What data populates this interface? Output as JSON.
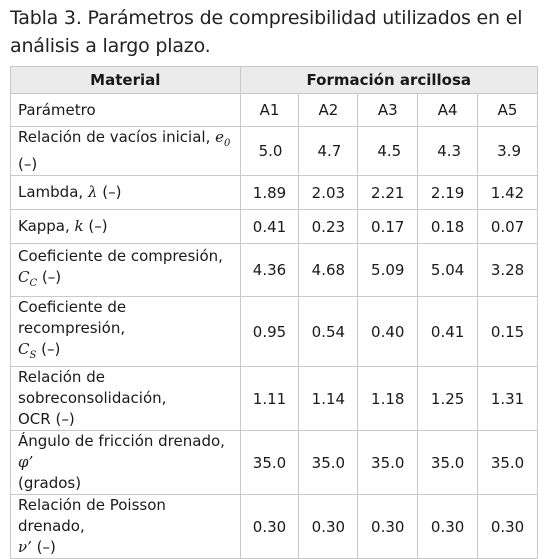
{
  "caption": "Tabla 3. Parámetros de compresibilidad utilizados en el análisis a largo plazo.",
  "header": {
    "material_label": "Material",
    "formation_label": "Formación arcillosa"
  },
  "subheader": {
    "param_label": "Parámetro",
    "columns": [
      "A1",
      "A2",
      "A3",
      "A4",
      "A5"
    ]
  },
  "rows": [
    {
      "label": "Relación de vacíos inicial, ",
      "sym": "e",
      "sub": "0",
      "tail": " (–)",
      "values": [
        "5.0",
        "4.7",
        "4.5",
        "4.3",
        "3.9"
      ]
    },
    {
      "label": "Lambda, ",
      "sym": "λ",
      "sub": "",
      "tail": " (–)",
      "values": [
        "1.89",
        "2.03",
        "2.21",
        "2.19",
        "1.42"
      ]
    },
    {
      "label": "Kappa, ",
      "sym": "k",
      "sub": "",
      "tail": " (–)",
      "values": [
        "0.41",
        "0.23",
        "0.17",
        "0.18",
        "0.07"
      ]
    },
    {
      "label": "Coeficiente de compresión,",
      "sym": "C",
      "sub": "C",
      "tail": " (–)",
      "values": [
        "4.36",
        "4.68",
        "5.09",
        "5.04",
        "3.28"
      ]
    },
    {
      "label": "Coeficiente de recompresión,",
      "sym": "C",
      "sub": "S",
      "tail": " (–)",
      "values": [
        "0.95",
        "0.54",
        "0.40",
        "0.41",
        "0.15"
      ]
    },
    {
      "label": "Relación de sobreconsolidación,",
      "sym": "",
      "sub": "",
      "tail": "OCR (–)",
      "values": [
        "1.11",
        "1.14",
        "1.18",
        "1.25",
        "1.31"
      ]
    },
    {
      "label": "Ángulo de fricción drenado, ",
      "sym": "φ’",
      "sub": "",
      "tail": "(grados)",
      "values": [
        "35.0",
        "35.0",
        "35.0",
        "35.0",
        "35.0"
      ]
    },
    {
      "label": "Relación de Poisson drenado,",
      "sym": "ν’",
      "sub": "",
      "tail": " (–)",
      "values": [
        "0.30",
        "0.30",
        "0.30",
        "0.30",
        "0.30"
      ]
    }
  ]
}
